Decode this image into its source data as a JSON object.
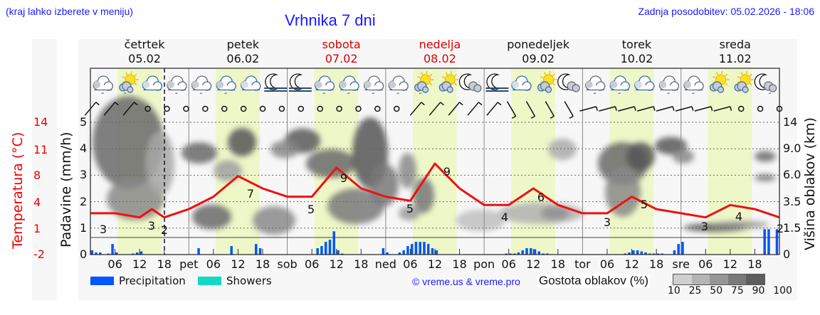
{
  "header": {
    "menu_hint": "(kraj lahko izberete v meniju)",
    "title": "Vrhnika 7 dni",
    "last_update": "Zadnja posodobitev: 05.02.2026 - 18:06"
  },
  "days": [
    {
      "name": "četrtek",
      "date": "05.02",
      "weekend": false
    },
    {
      "name": "petek",
      "date": "06.02",
      "weekend": false
    },
    {
      "name": "sobota",
      "date": "07.02",
      "weekend": true
    },
    {
      "name": "nedelja",
      "date": "08.02",
      "weekend": true
    },
    {
      "name": "ponedeljek",
      "date": "09.02",
      "weekend": false
    },
    {
      "name": "torek",
      "date": "10.02",
      "weekend": false
    },
    {
      "name": "sreda",
      "date": "11.02",
      "weekend": false
    }
  ],
  "weather_icons": [
    "cloud-rain-icon",
    "sun-cloud-rain-icon",
    "cloud-icon",
    "cloud-rain-icon",
    "cloud-rain-icon",
    "cloud-rain-icon",
    "cloud-icon",
    "moon-fog-icon",
    "moon-fog-icon",
    "cloud-rain-icon",
    "cloud-rain-icon",
    "cloud-rain-icon",
    "cloud-rain-icon",
    "sun-cloud-rain-icon",
    "sun-cloud-icon",
    "moon-cloud-icon",
    "moon-fog-icon",
    "cloud-icon",
    "sun-cloud-icon",
    "moon-cloud-icon",
    "cloud-rain-icon",
    "cloud-rain-icon",
    "cloud-icon",
    "cloud-rain-icon",
    "cloud-rain-icon",
    "sun-cloud-icon",
    "sun-cloud-icon",
    "moon-cloud-rain-icon"
  ],
  "axes": {
    "left_temp_label": "Temperatura (°C)",
    "left_precip_label": "Padavine (mm/h)",
    "right_label": "Višina oblakov (km)",
    "temp_ticks": [
      "14",
      "11",
      "8",
      "4",
      "1",
      "-2"
    ],
    "precip_ticks": [
      "5",
      "4",
      "3",
      "2",
      "1",
      "0"
    ],
    "cloud_height_ticks": [
      "14",
      "9.0",
      "6.0",
      "3.5",
      "1.5",
      "0"
    ],
    "x_ticks": [
      "06",
      "12",
      "18",
      "pet",
      "06",
      "12",
      "18",
      "sob",
      "06",
      "12",
      "18",
      "ned",
      "06",
      "12",
      "18",
      "pon",
      "06",
      "12",
      "18",
      "tor",
      "06",
      "12",
      "18",
      "sre",
      "06",
      "12",
      "18"
    ]
  },
  "legend": {
    "precipitation": "Precipitation",
    "showers": "Showers",
    "precipitation_color": "#0055ff",
    "showers_color": "#11d9c4",
    "copyright": "© vreme.us & vreme.pro",
    "cloud_density_label": "Gostota oblakov (%)",
    "cloud_density_scale": [
      "10",
      "25",
      "50",
      "75",
      "90",
      "100"
    ],
    "cloud_density_colors": [
      "#cfcfcf",
      "#b4b4b4",
      "#969696",
      "#7a7a7a",
      "#5e5e5e"
    ]
  },
  "chart_data": {
    "type": "line",
    "title": "Vrhnika 7 dni",
    "xlabel": "",
    "ylabel": "Padavine (mm/h)",
    "ylim": [
      0,
      5
    ],
    "temp_ylim": [
      -2,
      14
    ],
    "grid": true,
    "x_range": [
      "05.02 00:00",
      "12.02 00:00"
    ],
    "now_marker": "05.02 18:00",
    "series": [
      {
        "name": "Temperatura (°C)",
        "color": "#ee0000",
        "x_hours": [
          0,
          6,
          12,
          15,
          18,
          21,
          24,
          30,
          36,
          42,
          48,
          54,
          60,
          66,
          72,
          78,
          84,
          90,
          96,
          102,
          108,
          114,
          120,
          126,
          132,
          138,
          144,
          150,
          156,
          162,
          168
        ],
        "values": [
          3,
          3,
          2.5,
          3.5,
          2.5,
          3,
          3.5,
          5,
          7.5,
          6,
          5,
          5,
          8.5,
          6,
          5,
          4.5,
          9,
          6,
          4,
          4,
          6,
          4,
          3,
          3,
          5,
          3.5,
          3,
          2.5,
          4,
          3.5,
          2.5
        ],
        "labels": [
          {
            "x_hours": 3,
            "text": "3"
          },
          {
            "x_hours": 14,
            "text": "3"
          },
          {
            "x_hours": 18,
            "text": "2"
          },
          {
            "x_hours": 38,
            "text": "7"
          },
          {
            "x_hours": 53,
            "text": "5"
          },
          {
            "x_hours": 62,
            "text": "9"
          },
          {
            "x_hours": 77,
            "text": "5"
          },
          {
            "x_hours": 86,
            "text": "9"
          },
          {
            "x_hours": 100,
            "text": "4"
          },
          {
            "x_hours": 114,
            "text": "6"
          },
          {
            "x_hours": 127,
            "text": "3"
          },
          {
            "x_hours": 138,
            "text": "5"
          },
          {
            "x_hours": 151,
            "text": "3"
          },
          {
            "x_hours": 162,
            "text": "4"
          },
          {
            "x_hours": 167,
            "text": "2"
          }
        ]
      },
      {
        "name": "Precipitation (mm/h)",
        "type": "bar",
        "color": "#0055ff",
        "x_hours": [
          0,
          1,
          2,
          4,
          5,
          6,
          10,
          11,
          12,
          26,
          34,
          40,
          41,
          55,
          56,
          57,
          58,
          59,
          60,
          61,
          62,
          71,
          72,
          75,
          76,
          77,
          78,
          79,
          80,
          81,
          82,
          83,
          84,
          101,
          102,
          103,
          104,
          105,
          106,
          107,
          108,
          109,
          110,
          111,
          130,
          131,
          132,
          133,
          134,
          135,
          136,
          137,
          138,
          139,
          142,
          143,
          144,
          164,
          165,
          167
        ],
        "values": [
          0.2,
          0.1,
          0.1,
          0.05,
          0.5,
          0.1,
          0.05,
          0.1,
          0.15,
          0.3,
          0.4,
          0.5,
          0.3,
          0.3,
          0.4,
          0.6,
          0.7,
          1.1,
          0.2,
          0.05,
          0,
          0.3,
          0.1,
          0.1,
          0.2,
          0.4,
          0.5,
          0.6,
          0.6,
          0.6,
          0.5,
          0.3,
          0.2,
          0.05,
          0.05,
          0.05,
          0.1,
          0.2,
          0.3,
          0.3,
          0.25,
          0.15,
          0.05,
          0.05,
          0.05,
          0.1,
          0.2,
          0.2,
          0.15,
          0.1,
          0.05,
          0.05,
          0.05,
          0.05,
          0.2,
          0.5,
          0.6,
          1.2,
          1.2,
          1.2
        ]
      }
    ]
  }
}
